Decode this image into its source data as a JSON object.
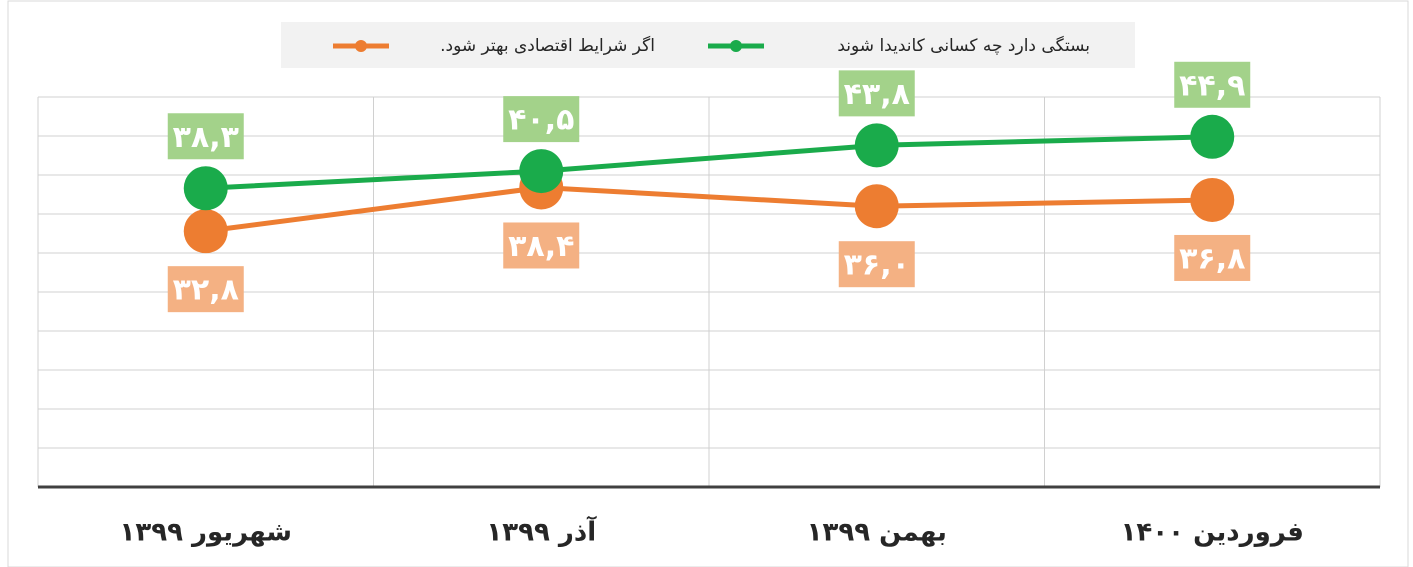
{
  "chart_data": {
    "type": "line",
    "categories": [
      "شهریور ۱۳۹۹",
      "آذر ۱۳۹۹",
      "بهمن ۱۳۹۹",
      "فروردین ۱۴۰۰"
    ],
    "series": [
      {
        "name": "بستگی دارد چه کسانی کاندیدا شوند",
        "color": "#1aab4b",
        "label_color": "#a3d28a",
        "values": [
          38.3,
          40.5,
          43.8,
          44.9
        ],
        "value_labels": [
          "۳۸,۳",
          "۴۰,۵",
          "۴۳,۸",
          "۴۴,۹"
        ]
      },
      {
        "name": "اگر شرایط اقتصادی بهتر شود.",
        "color": "#ed7d31",
        "label_color": "#f4b183",
        "values": [
          32.8,
          38.4,
          36.0,
          36.8
        ],
        "value_labels": [
          "۳۲,۸",
          "۳۸,۴",
          "۳۶,۰",
          "۳۶,۸"
        ]
      }
    ],
    "ylim": [
      0,
      50
    ],
    "yticks": [
      0,
      5,
      10,
      15,
      20,
      25,
      30,
      35,
      40,
      45,
      50
    ],
    "grid": true,
    "legend": "top"
  }
}
